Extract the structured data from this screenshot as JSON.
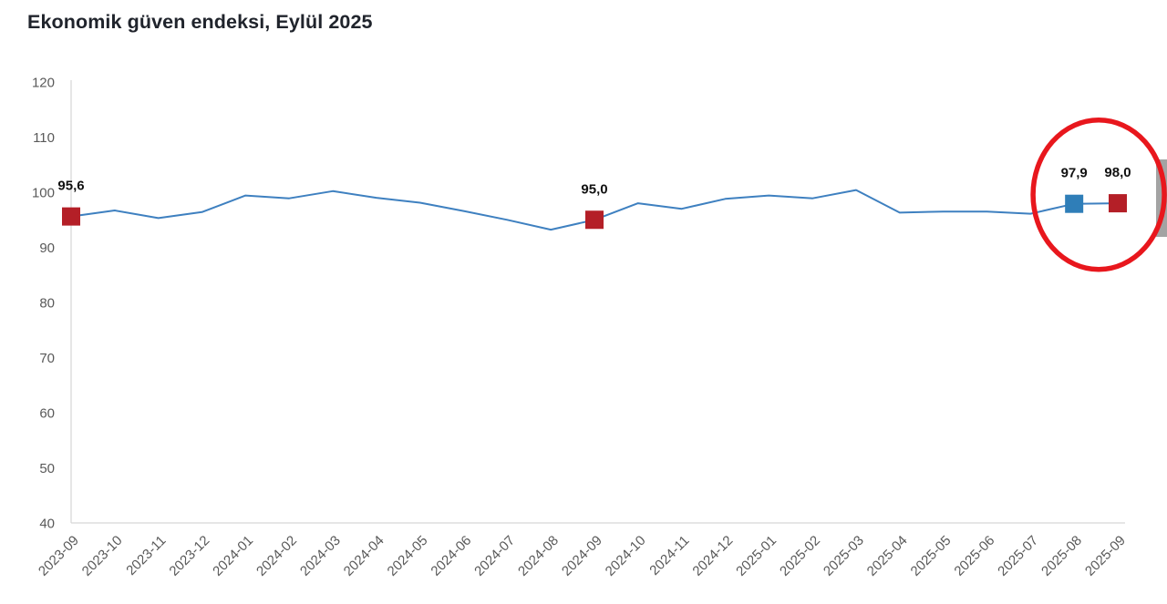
{
  "header": {
    "title": "Ekonomik güven endeksi, Eylül 2025"
  },
  "colors": {
    "line": "#3e80c0",
    "marker_red": "#b41f27",
    "marker_blue": "#2f7eb8",
    "annotation_circle": "#e8171d",
    "axis_line": "#d6d6d6",
    "tick_text": "#595959",
    "scrollbar_thumb": "#a3a3a3"
  },
  "chart_data": {
    "type": "line",
    "title": "Ekonomik güven endeksi, Eylül 2025",
    "xlabel": "",
    "ylabel": "",
    "ylim": [
      40,
      120
    ],
    "yticks": [
      40,
      50,
      60,
      70,
      80,
      90,
      100,
      110,
      120
    ],
    "grid": false,
    "legend": "none",
    "x": [
      "2023-09",
      "2023-10",
      "2023-11",
      "2023-12",
      "2024-01",
      "2024-02",
      "2024-03",
      "2024-04",
      "2024-05",
      "2024-06",
      "2024-07",
      "2024-08",
      "2024-09",
      "2024-10",
      "2024-11",
      "2024-12",
      "2025-01",
      "2025-02",
      "2025-03",
      "2025-04",
      "2025-05",
      "2025-06",
      "2025-07",
      "2025-08",
      "2025-09"
    ],
    "series": [
      {
        "name": "Ekonomik güven endeksi",
        "values": [
          95.6,
          96.7,
          95.3,
          96.4,
          99.4,
          98.9,
          100.2,
          99.0,
          98.1,
          96.6,
          95.0,
          93.2,
          95.0,
          98.0,
          97.0,
          98.8,
          99.4,
          98.9,
          100.4,
          96.3,
          96.5,
          96.5,
          96.1,
          97.9,
          98.0
        ]
      }
    ],
    "highlighted_points": [
      {
        "x": "2023-09",
        "value": 95.6,
        "label": "95,6",
        "marker": "square",
        "marker_color": "#b41f27"
      },
      {
        "x": "2024-09",
        "value": 95.0,
        "label": "95,0",
        "marker": "square",
        "marker_color": "#b41f27"
      },
      {
        "x": "2025-08",
        "value": 97.9,
        "label": "97,9",
        "marker": "square",
        "marker_color": "#2f7eb8"
      },
      {
        "x": "2025-09",
        "value": 98.0,
        "label": "98,0",
        "marker": "square",
        "marker_color": "#b41f27"
      }
    ],
    "annotation": {
      "shape": "ellipse",
      "around": [
        "2025-08",
        "2025-09"
      ],
      "color": "#e8171d"
    }
  }
}
